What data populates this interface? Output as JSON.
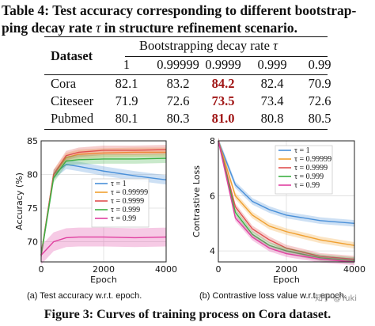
{
  "table": {
    "caption_prefix": "Table 4: Test accuracy corresponding to different bootstrap-",
    "caption_line2": "ping decay rate ",
    "caption_tau": "τ",
    "caption_line2_end": " in structure refinement scenario.",
    "header_dataset": "Dataset",
    "header_group": "Bootstrapping decay rate ",
    "header_tau": "τ",
    "columns": [
      "1",
      "0.99999",
      "0.9999",
      "0.999",
      "0.99"
    ],
    "rows": [
      {
        "name": "Cora",
        "values": [
          "82.1",
          "83.2",
          "84.2",
          "82.4",
          "70.9"
        ],
        "best_index": 2
      },
      {
        "name": "Citeseer",
        "values": [
          "71.9",
          "72.6",
          "73.5",
          "73.4",
          "72.6"
        ],
        "best_index": 2
      },
      {
        "name": "Pubmed",
        "values": [
          "80.1",
          "80.3",
          "81.0",
          "80.8",
          "80.5"
        ],
        "best_index": 2
      }
    ]
  },
  "chart_data": [
    {
      "type": "line",
      "xlabel": "Epoch",
      "ylabel": "Accuracy (%)",
      "xlim": [
        0,
        4000
      ],
      "ylim": [
        67,
        85
      ],
      "xticks": [
        "0",
        "2000",
        "4000"
      ],
      "yticks": [
        "70",
        "75",
        "80",
        "85"
      ],
      "legend_position": "center-right",
      "series": [
        {
          "name": "τ = 1",
          "color": "#4a90d9",
          "x": [
            0,
            400,
            800,
            1200,
            2000,
            3000,
            4000
          ],
          "values": [
            68,
            80,
            81.5,
            81.2,
            80.5,
            79.8,
            79.2
          ]
        },
        {
          "name": "τ = 0.99999",
          "color": "#f0a030",
          "x": [
            0,
            400,
            800,
            1200,
            2000,
            3000,
            4000
          ],
          "values": [
            68,
            80,
            82.5,
            83,
            83.2,
            83.3,
            83.3
          ]
        },
        {
          "name": "τ = 0.9999",
          "color": "#e05050",
          "x": [
            0,
            400,
            800,
            1200,
            2000,
            3000,
            4000
          ],
          "values": [
            68,
            80,
            82.8,
            83.3,
            83.6,
            83.6,
            83.7
          ]
        },
        {
          "name": "τ = 0.999",
          "color": "#3cb043",
          "x": [
            0,
            400,
            800,
            1200,
            2000,
            3000,
            4000
          ],
          "values": [
            68,
            79.5,
            82,
            82.2,
            82.3,
            82.3,
            82.4
          ]
        },
        {
          "name": "τ = 0.99",
          "color": "#e040a0",
          "x": [
            0,
            400,
            800,
            1200,
            2000,
            3000,
            4000
          ],
          "values": [
            68,
            70,
            70.6,
            70.7,
            70.7,
            70.6,
            70.7
          ]
        }
      ],
      "subcaption": "(a)  Test accuracy w.r.t. epoch."
    },
    {
      "type": "line",
      "xlabel": "Epoch",
      "ylabel": "Contrastive Loss",
      "xlim": [
        0,
        4000
      ],
      "ylim": [
        3.6,
        8
      ],
      "xticks": [
        "0",
        "2000",
        "4000"
      ],
      "yticks": [
        "4",
        "6",
        "8"
      ],
      "legend_position": "top-right",
      "series": [
        {
          "name": "τ = 1",
          "color": "#4a90d9",
          "x": [
            0,
            500,
            1000,
            1500,
            2000,
            3000,
            4000
          ],
          "values": [
            8,
            6.4,
            5.8,
            5.5,
            5.3,
            5.1,
            5.0
          ]
        },
        {
          "name": "τ = 0.99999",
          "color": "#f0a030",
          "x": [
            0,
            500,
            1000,
            1500,
            2000,
            3000,
            4000
          ],
          "values": [
            8,
            6.0,
            5.3,
            4.9,
            4.7,
            4.4,
            4.2
          ]
        },
        {
          "name": "τ = 0.9999",
          "color": "#e05050",
          "x": [
            0,
            500,
            1000,
            1500,
            2000,
            3000,
            4000
          ],
          "values": [
            8,
            5.6,
            4.8,
            4.4,
            4.1,
            3.8,
            3.7
          ]
        },
        {
          "name": "τ = 0.999",
          "color": "#3cb043",
          "x": [
            0,
            500,
            1000,
            1500,
            2000,
            3000,
            4000
          ],
          "values": [
            8,
            5.4,
            4.6,
            4.2,
            4.0,
            3.75,
            3.65
          ]
        },
        {
          "name": "τ = 0.99",
          "color": "#e040a0",
          "x": [
            0,
            500,
            1000,
            1500,
            2000,
            3000,
            4000
          ],
          "values": [
            8,
            5.2,
            4.5,
            4.1,
            3.9,
            3.7,
            3.6
          ]
        }
      ],
      "subcaption": "(b)  Contrastive loss value w.r.t. epoch."
    }
  ],
  "figure_caption": "Figure 3: Curves of training process on Cora dataset.",
  "watermark": "知乎 @Yuki"
}
